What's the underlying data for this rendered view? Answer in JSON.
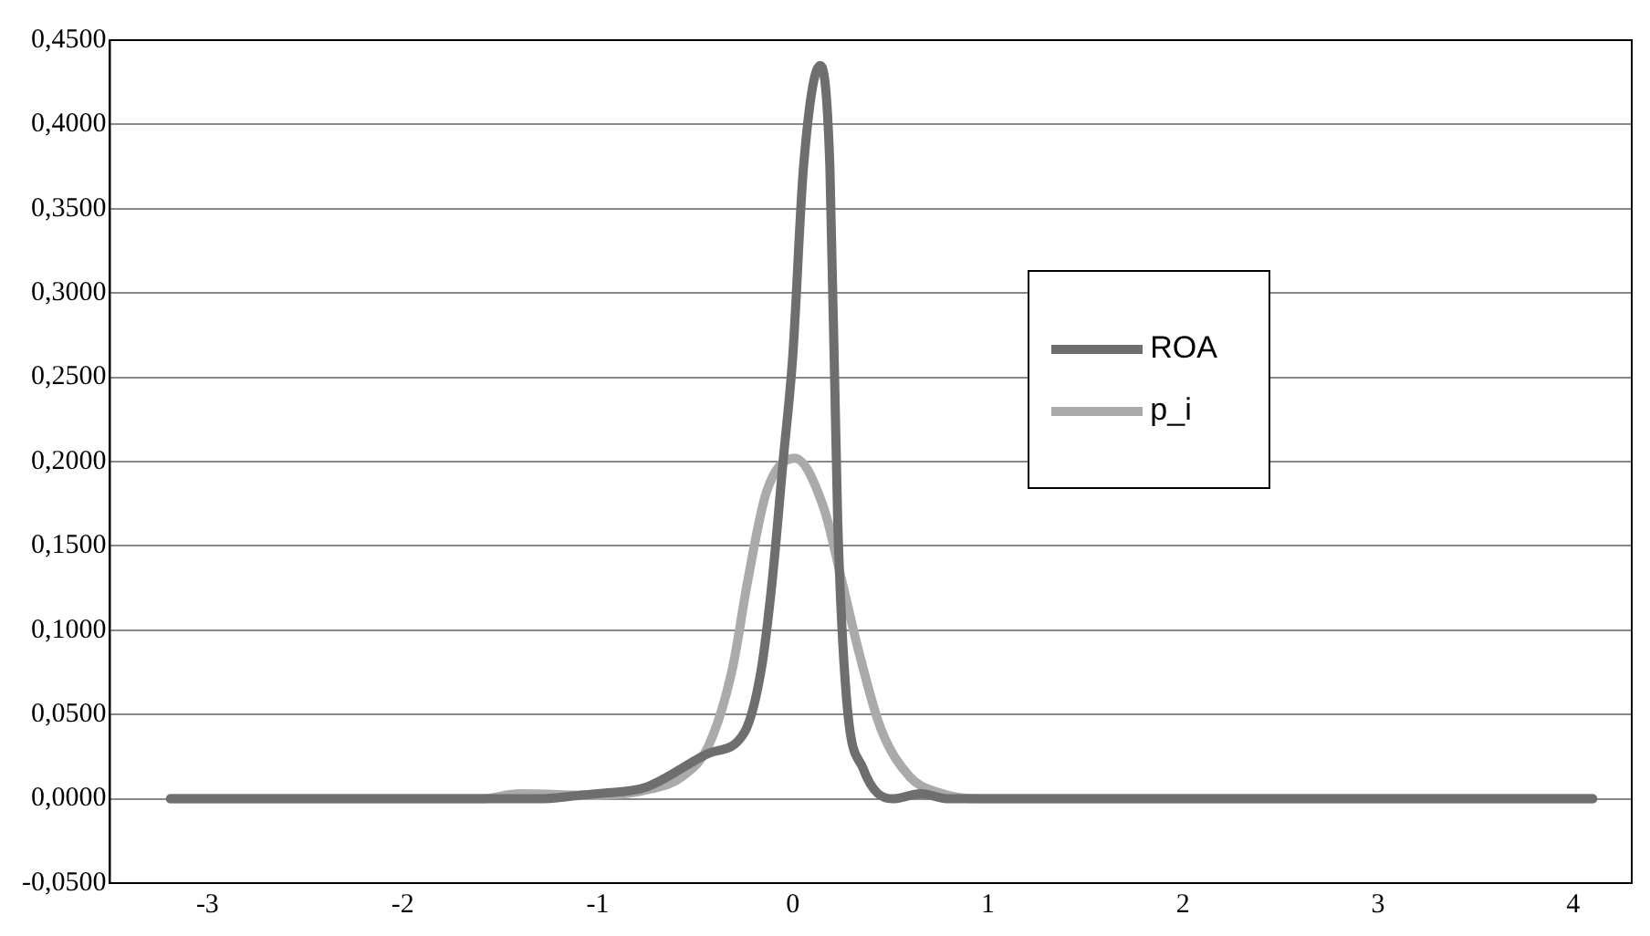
{
  "chart_data": {
    "type": "line",
    "xlim": [
      -3.5,
      4.3
    ],
    "ylim": [
      -0.05,
      0.45
    ],
    "xticks": [
      -3,
      -2,
      -1,
      0,
      1,
      2,
      3,
      4
    ],
    "yticks": [
      {
        "value": -0.05,
        "label": "-0,0500"
      },
      {
        "value": 0,
        "label": "0,0000"
      },
      {
        "value": 0.05,
        "label": "0,0500"
      },
      {
        "value": 0.1,
        "label": "0,1000"
      },
      {
        "value": 0.15,
        "label": "0,1500"
      },
      {
        "value": 0.2,
        "label": "0,2000"
      },
      {
        "value": 0.25,
        "label": "0,2500"
      },
      {
        "value": 0.3,
        "label": "0,3000"
      },
      {
        "value": 0.35,
        "label": "0,3500"
      },
      {
        "value": 0.4,
        "label": "0,4000"
      },
      {
        "value": 0.45,
        "label": "0,4500"
      }
    ],
    "grid": "y",
    "legend": "right",
    "marker": "none",
    "line_style": "solid",
    "series": [
      {
        "name": "ROA",
        "color": "#6e6e6e",
        "x": [
          -3.19,
          -2,
          -1.3,
          -1.1,
          -1.0,
          -0.75,
          -0.43,
          -0.25,
          -0.16,
          -0.105,
          -0.05,
          0,
          0.055,
          0.14,
          0.19,
          0.23,
          0.275,
          0.36,
          0.51,
          0.655,
          0.8,
          1,
          2,
          3,
          4.1
        ],
        "values": [
          0,
          0,
          0,
          0.002,
          0.003,
          0.007,
          0.027,
          0.039,
          0.078,
          0.13,
          0.2,
          0.263,
          0.375,
          0.435,
          0.375,
          0.165,
          0.06,
          0.018,
          0,
          0.003,
          0,
          0,
          0,
          0,
          0
        ]
      },
      {
        "name": "p_i",
        "color": "#aaaaaa",
        "x": [
          -3.19,
          -2,
          -1.6,
          -1.4,
          -1.01,
          -0.72,
          -0.57,
          -0.43,
          -0.31,
          -0.23,
          -0.135,
          0.01,
          0.16,
          0.25,
          0.33,
          0.45,
          0.6,
          0.74,
          0.95,
          2,
          3,
          4.1
        ],
        "values": [
          0,
          0,
          0,
          0.003,
          0.002,
          0.006,
          0.013,
          0.032,
          0.077,
          0.13,
          0.182,
          0.202,
          0.172,
          0.13,
          0.091,
          0.042,
          0.013,
          0.004,
          0,
          0,
          0,
          0
        ]
      }
    ]
  }
}
